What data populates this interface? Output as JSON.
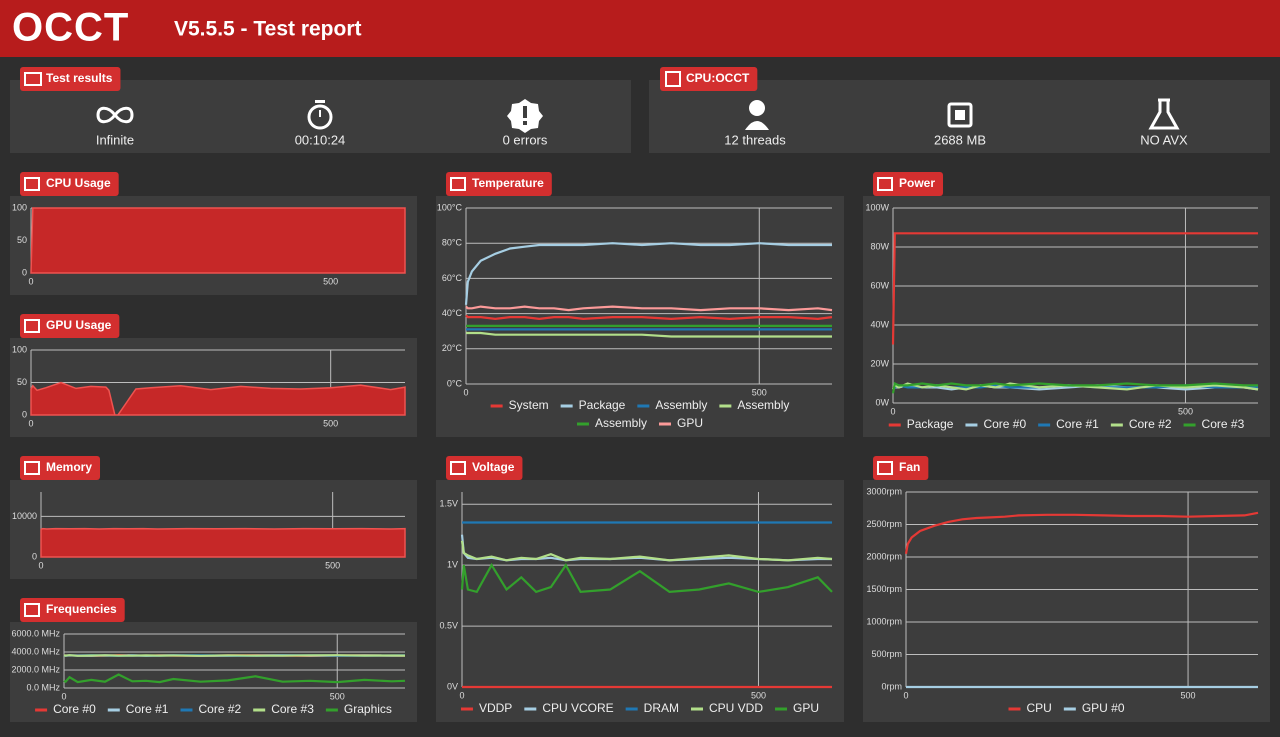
{
  "header": {
    "logo": "OCCT",
    "title": "V5.5.5 - Test report"
  },
  "test_results": {
    "title": "Test results",
    "items": [
      "Infinite",
      "00:10:24",
      "0 errors"
    ]
  },
  "cpu_info": {
    "title": "CPU:OCCT",
    "items": [
      "12 threads",
      "2688 MB",
      "NO AVX"
    ]
  },
  "chart_data": [
    {
      "type": "area",
      "title": "CPU Usage",
      "color": "#c62828",
      "x": [
        0,
        3,
        10,
        25,
        50,
        75,
        100,
        125,
        150,
        175,
        200,
        250,
        300,
        350,
        400,
        450,
        500,
        550,
        600,
        624
      ],
      "values": [
        0,
        100,
        100,
        100,
        100,
        100,
        100,
        100,
        100,
        100,
        100,
        100,
        100,
        100,
        100,
        100,
        100,
        100,
        100,
        100
      ],
      "xlim": [
        0,
        624
      ],
      "xticks": [
        0,
        500
      ],
      "ylim": [
        0,
        100
      ],
      "yticks": [
        0,
        50,
        100
      ],
      "grid": true
    },
    {
      "type": "area",
      "title": "GPU Usage",
      "color": "#c62828",
      "x": [
        0,
        3,
        10,
        25,
        50,
        75,
        100,
        125,
        130,
        140,
        145,
        175,
        200,
        250,
        300,
        350,
        400,
        450,
        500,
        550,
        600,
        624
      ],
      "values": [
        40,
        45,
        38,
        42,
        50,
        41,
        44,
        43,
        38,
        0,
        0,
        40,
        42,
        45,
        39,
        44,
        41,
        40,
        42,
        46,
        39,
        43
      ],
      "xlim": [
        0,
        624
      ],
      "xticks": [
        0,
        500
      ],
      "ylim": [
        0,
        100
      ],
      "yticks": [
        0,
        50,
        100
      ],
      "grid": true
    },
    {
      "type": "area",
      "title": "Memory",
      "color": "#c62828",
      "x": [
        0,
        3,
        10,
        25,
        50,
        75,
        100,
        125,
        150,
        175,
        200,
        250,
        300,
        350,
        400,
        450,
        500,
        550,
        600,
        624
      ],
      "values": [
        6800,
        7000,
        6900,
        7000,
        6950,
        7000,
        6900,
        7000,
        6950,
        7000,
        6900,
        7000,
        6950,
        7000,
        6900,
        7000,
        6950,
        7000,
        6900,
        7000
      ],
      "xlim": [
        0,
        624
      ],
      "xticks": [
        0,
        500
      ],
      "ylim": [
        0,
        16000
      ],
      "yticks": [
        0,
        10000
      ],
      "grid": true
    },
    {
      "type": "line",
      "title": "Frequencies",
      "x": [
        0,
        3,
        10,
        25,
        50,
        75,
        100,
        125,
        150,
        175,
        200,
        250,
        300,
        350,
        400,
        450,
        500,
        550,
        600,
        624
      ],
      "series": [
        {
          "name": "Core #0",
          "color": "#e53935",
          "values": [
            3600,
            3620,
            3580,
            3640,
            3600,
            3570,
            3650,
            3610,
            3590,
            3630,
            3600,
            3580,
            3620,
            3640,
            3600,
            3570,
            3610,
            3630,
            3590,
            3600
          ]
        },
        {
          "name": "Core #1",
          "color": "#a6cee3",
          "values": [
            3610,
            3590,
            3630,
            3600,
            3580,
            3620,
            3600,
            3640,
            3570,
            3610,
            3630,
            3600,
            3580,
            3610,
            3640,
            3600,
            3590,
            3620,
            3600,
            3610
          ]
        },
        {
          "name": "Core #2",
          "color": "#1f78b4",
          "values": [
            3590,
            3610,
            3600,
            3620,
            3640,
            3600,
            3580,
            3610,
            3600,
            3590,
            3620,
            3640,
            3600,
            3580,
            3610,
            3630,
            3600,
            3590,
            3610,
            3620
          ]
        },
        {
          "name": "Core #3",
          "color": "#b2df8a",
          "values": [
            3620,
            3600,
            3640,
            3580,
            3610,
            3630,
            3600,
            3590,
            3620,
            3600,
            3610,
            3580,
            3630,
            3600,
            3590,
            3620,
            3640,
            3600,
            3610,
            3600
          ]
        },
        {
          "name": "Graphics",
          "color": "#33a02c",
          "values": [
            800,
            700,
            1200,
            650,
            900,
            700,
            1500,
            750,
            800,
            650,
            1000,
            700,
            850,
            1300,
            700,
            800,
            650,
            900,
            750,
            800
          ]
        }
      ],
      "xlim": [
        0,
        624
      ],
      "xticks": [
        0,
        500
      ],
      "ylim": [
        0,
        6000
      ],
      "yticks": [
        {
          "value": 0,
          "label": "0.0 MHz"
        },
        {
          "value": 2000,
          "label": "2000.0 MHz"
        },
        {
          "value": 4000,
          "label": "4000.0 MHz"
        },
        {
          "value": 6000,
          "label": "6000.0 MHz"
        }
      ],
      "grid": true
    },
    {
      "type": "line",
      "title": "Temperature",
      "x": [
        0,
        3,
        10,
        25,
        50,
        75,
        100,
        125,
        150,
        175,
        200,
        250,
        300,
        350,
        400,
        450,
        500,
        550,
        600,
        624
      ],
      "series": [
        {
          "name": "System",
          "color": "#e53935",
          "values": [
            39,
            38,
            38,
            38,
            37,
            38,
            38,
            37,
            38,
            38,
            37,
            38,
            38,
            37,
            38,
            37,
            38,
            38,
            37,
            38
          ]
        },
        {
          "name": "Package",
          "color": "#a6cee3",
          "values": [
            45,
            58,
            64,
            70,
            74,
            77,
            78,
            79,
            79,
            79,
            79,
            80,
            79,
            80,
            79,
            79,
            80,
            79,
            79,
            79
          ]
        },
        {
          "name": "Assembly",
          "color": "#1f78b4",
          "values": [
            31,
            31,
            31,
            31,
            31,
            31,
            31,
            31,
            31,
            31,
            31,
            31,
            31,
            31,
            31,
            31,
            31,
            31,
            31,
            31
          ]
        },
        {
          "name": "Assembly",
          "color": "#b2df8a",
          "values": [
            29,
            29,
            29,
            29,
            28,
            28,
            28,
            28,
            28,
            28,
            28,
            28,
            28,
            27,
            27,
            27,
            27,
            27,
            27,
            27
          ]
        },
        {
          "name": "Assembly",
          "color": "#33a02c",
          "values": [
            33,
            33,
            33,
            33,
            33,
            33,
            33,
            33,
            33,
            33,
            33,
            33,
            33,
            33,
            33,
            33,
            33,
            33,
            33,
            33
          ]
        },
        {
          "name": "GPU",
          "color": "#fb9a99",
          "values": [
            44,
            43,
            43,
            44,
            43,
            43,
            44,
            43,
            43,
            42,
            43,
            44,
            43,
            43,
            42,
            43,
            43,
            42,
            43,
            42
          ]
        }
      ],
      "xlim": [
        0,
        624
      ],
      "xticks": [
        0,
        500
      ],
      "ylim": [
        0,
        100
      ],
      "yticks": [
        {
          "value": 0,
          "label": "0°C"
        },
        {
          "value": 20,
          "label": "20°C"
        },
        {
          "value": 40,
          "label": "40°C"
        },
        {
          "value": 60,
          "label": "60°C"
        },
        {
          "value": 80,
          "label": "80°C"
        },
        {
          "value": 100,
          "label": "100°C"
        }
      ],
      "grid": true
    },
    {
      "type": "line",
      "title": "Voltage",
      "x": [
        0,
        3,
        10,
        25,
        50,
        75,
        100,
        125,
        150,
        175,
        200,
        250,
        300,
        350,
        400,
        450,
        500,
        550,
        600,
        624
      ],
      "series": [
        {
          "name": "VDDP",
          "color": "#e53935",
          "values": [
            0,
            0,
            0,
            0,
            0,
            0,
            0,
            0,
            0,
            0,
            0,
            0,
            0,
            0,
            0,
            0,
            0,
            0,
            0,
            0
          ]
        },
        {
          "name": "CPU VCORE",
          "color": "#a6cee3",
          "values": [
            1.25,
            1.1,
            1.06,
            1.05,
            1.06,
            1.04,
            1.05,
            1.05,
            1.06,
            1.04,
            1.05,
            1.05,
            1.06,
            1.04,
            1.05,
            1.06,
            1.05,
            1.04,
            1.05,
            1.05
          ]
        },
        {
          "name": "DRAM",
          "color": "#1f78b4",
          "values": [
            1.35,
            1.35,
            1.35,
            1.35,
            1.35,
            1.35,
            1.35,
            1.35,
            1.35,
            1.35,
            1.35,
            1.35,
            1.35,
            1.35,
            1.35,
            1.35,
            1.35,
            1.35,
            1.35,
            1.35
          ]
        },
        {
          "name": "CPU VDD",
          "color": "#b2df8a",
          "values": [
            1.2,
            1.1,
            1.08,
            1.05,
            1.07,
            1.04,
            1.06,
            1.05,
            1.09,
            1.04,
            1.06,
            1.05,
            1.07,
            1.04,
            1.06,
            1.08,
            1.05,
            1.04,
            1.06,
            1.05
          ]
        },
        {
          "name": "GPU",
          "color": "#33a02c",
          "values": [
            0.8,
            1.0,
            0.8,
            0.78,
            1.0,
            0.8,
            0.9,
            0.78,
            0.82,
            1.0,
            0.78,
            0.8,
            0.95,
            0.78,
            0.8,
            0.85,
            0.78,
            0.82,
            0.9,
            0.78
          ]
        }
      ],
      "xlim": [
        0,
        624
      ],
      "xticks": [
        0,
        500
      ],
      "ylim": [
        0,
        1.6
      ],
      "yticks": [
        {
          "value": 0,
          "label": "0V"
        },
        {
          "value": 0.5,
          "label": "0.5V"
        },
        {
          "value": 1,
          "label": "1V"
        },
        {
          "value": 1.5,
          "label": "1.5V"
        }
      ],
      "grid": true
    },
    {
      "type": "line",
      "title": "Power",
      "x": [
        0,
        3,
        10,
        25,
        50,
        75,
        100,
        125,
        150,
        175,
        200,
        250,
        300,
        350,
        400,
        450,
        500,
        550,
        600,
        624
      ],
      "series": [
        {
          "name": "Package",
          "color": "#e53935",
          "values": [
            30,
            87,
            87,
            87,
            87,
            87,
            87,
            87,
            87,
            87,
            87,
            87,
            87,
            87,
            87,
            87,
            87,
            87,
            87,
            87
          ]
        },
        {
          "name": "Core #0",
          "color": "#a6cee3",
          "values": [
            7,
            8,
            8,
            9,
            8,
            8,
            7,
            8,
            9,
            8,
            8,
            7,
            8,
            9,
            8,
            8,
            7,
            8,
            8,
            7
          ]
        },
        {
          "name": "Core #1",
          "color": "#1f78b4",
          "values": [
            8,
            8,
            9,
            8,
            8,
            9,
            8,
            8,
            8,
            9,
            8,
            8,
            9,
            8,
            8,
            8,
            9,
            8,
            8,
            8
          ]
        },
        {
          "name": "Core #2",
          "color": "#b2df8a",
          "values": [
            7,
            9,
            8,
            10,
            8,
            9,
            8,
            7,
            9,
            8,
            10,
            8,
            9,
            8,
            7,
            9,
            8,
            9,
            8,
            7
          ]
        },
        {
          "name": "Core #3",
          "color": "#33a02c",
          "values": [
            5,
            10,
            9,
            9,
            10,
            9,
            10,
            9,
            9,
            10,
            9,
            10,
            9,
            9,
            10,
            9,
            9,
            10,
            9,
            9
          ]
        }
      ],
      "xlim": [
        0,
        624
      ],
      "xticks": [
        0,
        500
      ],
      "ylim": [
        0,
        100
      ],
      "yticks": [
        {
          "value": 0,
          "label": "0W"
        },
        {
          "value": 20,
          "label": "20W"
        },
        {
          "value": 40,
          "label": "40W"
        },
        {
          "value": 60,
          "label": "60W"
        },
        {
          "value": 80,
          "label": "80W"
        },
        {
          "value": 100,
          "label": "100W"
        }
      ],
      "grid": true
    },
    {
      "type": "line",
      "title": "Fan",
      "x": [
        0,
        3,
        10,
        25,
        50,
        75,
        100,
        125,
        150,
        175,
        200,
        250,
        300,
        350,
        400,
        450,
        500,
        550,
        600,
        624
      ],
      "series": [
        {
          "name": "CPU",
          "color": "#e53935",
          "values": [
            2050,
            2200,
            2300,
            2400,
            2480,
            2540,
            2580,
            2600,
            2610,
            2620,
            2640,
            2650,
            2650,
            2640,
            2630,
            2630,
            2620,
            2630,
            2640,
            2680
          ]
        },
        {
          "name": "GPU #0",
          "color": "#a6cee3",
          "values": [
            0,
            0,
            0,
            0,
            0,
            0,
            0,
            0,
            0,
            0,
            0,
            0,
            0,
            0,
            0,
            0,
            0,
            0,
            0,
            0
          ]
        }
      ],
      "xlim": [
        0,
        624
      ],
      "xticks": [
        0,
        500
      ],
      "ylim": [
        0,
        3000
      ],
      "yticks": [
        {
          "value": 0,
          "label": "0rpm"
        },
        {
          "value": 500,
          "label": "500rpm"
        },
        {
          "value": 1000,
          "label": "1000rpm"
        },
        {
          "value": 1500,
          "label": "1500rpm"
        },
        {
          "value": 2000,
          "label": "2000rpm"
        },
        {
          "value": 2500,
          "label": "2500rpm"
        },
        {
          "value": 3000,
          "label": "3000rpm"
        }
      ],
      "grid": true
    }
  ]
}
